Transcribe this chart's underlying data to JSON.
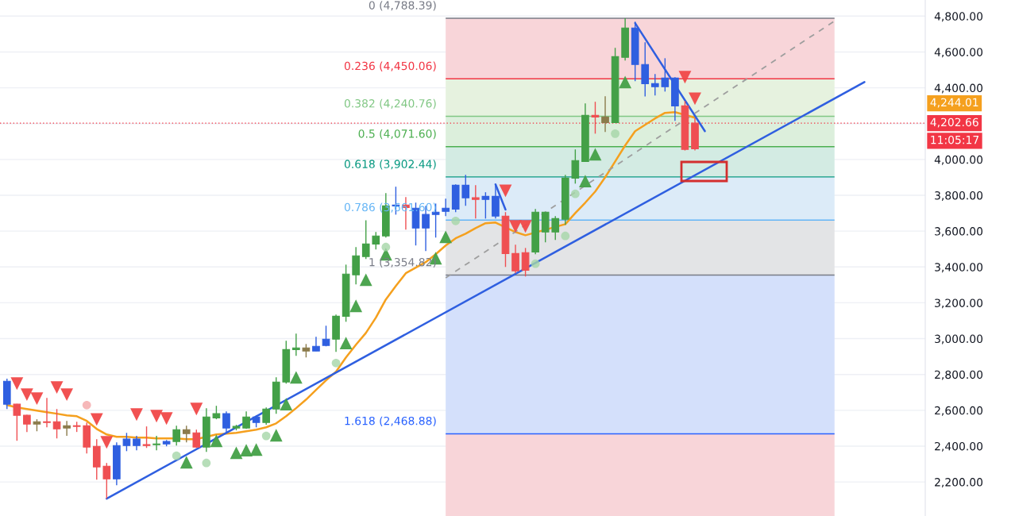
{
  "chart_data": {
    "type": "candlestick",
    "categories": [
      null,
      null,
      null,
      null,
      null,
      null,
      null,
      null,
      null,
      null,
      null,
      null,
      null,
      null,
      null,
      null,
      null,
      null,
      null,
      null,
      null,
      null,
      null,
      null,
      null,
      null,
      null,
      null,
      null,
      null,
      null,
      null,
      null,
      null,
      null,
      null,
      null,
      null,
      null,
      null,
      null,
      null,
      null,
      null,
      null,
      null,
      null,
      null,
      null,
      null,
      null,
      null,
      null,
      null,
      null,
      null,
      null,
      null,
      null,
      null,
      null,
      null,
      null,
      null,
      null,
      null,
      null,
      null,
      null,
      null,
      null,
      null,
      null,
      null,
      null,
      null,
      null,
      null,
      null,
      null,
      null,
      null,
      null,
      null,
      null,
      null,
      null,
      null,
      null,
      null,
      null,
      null,
      null
    ],
    "ohlc": [
      [
        2762,
        2776,
        2607,
        2634
      ],
      [
        2634,
        2636,
        2430,
        2572
      ],
      [
        2572,
        2575,
        2479,
        2523
      ],
      [
        2536,
        2550,
        2483,
        2523
      ],
      [
        2536,
        2669,
        2505,
        2532
      ],
      [
        2536,
        2607,
        2443,
        2496
      ],
      [
        2514,
        2541,
        2457,
        2501
      ],
      [
        2514,
        2536,
        2479,
        2510
      ],
      [
        2514,
        2532,
        2359,
        2395
      ],
      [
        2399,
        2439,
        2213,
        2284
      ],
      [
        2288,
        2306,
        2107,
        2217
      ],
      [
        2217,
        2421,
        2182,
        2403
      ],
      [
        2403,
        2474,
        2372,
        2439
      ],
      [
        2439,
        2457,
        2377,
        2403
      ],
      [
        2408,
        2510,
        2390,
        2403
      ],
      [
        2408,
        2457,
        2377,
        2412
      ],
      [
        2426,
        2434,
        2399,
        2412
      ],
      [
        2426,
        2514,
        2403,
        2492
      ],
      [
        2492,
        2514,
        2421,
        2470
      ],
      [
        2474,
        2492,
        2390,
        2395
      ],
      [
        2395,
        2612,
        2368,
        2563
      ],
      [
        2558,
        2625,
        2550,
        2581
      ],
      [
        2581,
        2594,
        2470,
        2501
      ],
      [
        2501,
        2519,
        2488,
        2510
      ],
      [
        2501,
        2594,
        2496,
        2563
      ],
      [
        2563,
        2572,
        2505,
        2532
      ],
      [
        2532,
        2616,
        2519,
        2607
      ],
      [
        2607,
        2784,
        2581,
        2758
      ],
      [
        2758,
        2988,
        2749,
        2939
      ],
      [
        2939,
        3028,
        2904,
        2948
      ],
      [
        2948,
        2970,
        2895,
        2931
      ],
      [
        2931,
        3010,
        2931,
        2957
      ],
      [
        2962,
        3072,
        2957,
        2997
      ],
      [
        2997,
        3134,
        2926,
        3125
      ],
      [
        3125,
        3413,
        3094,
        3360
      ],
      [
        3356,
        3511,
        3303,
        3462
      ],
      [
        3458,
        3661,
        3444,
        3528
      ],
      [
        3528,
        3595,
        3498,
        3573
      ],
      [
        3573,
        3812,
        3564,
        3741
      ],
      [
        3741,
        3848,
        3692,
        3746
      ],
      [
        3746,
        3790,
        3608,
        3732
      ],
      [
        3728,
        3759,
        3520,
        3617
      ],
      [
        3617,
        3741,
        3489,
        3693
      ],
      [
        3693,
        3754,
        3564,
        3706
      ],
      [
        3710,
        3781,
        3684,
        3728
      ],
      [
        3723,
        3861,
        3706,
        3856
      ],
      [
        3786,
        3914,
        3741,
        3856
      ],
      [
        3786,
        3856,
        3670,
        3777
      ],
      [
        3777,
        3817,
        3670,
        3794
      ],
      [
        3794,
        3856,
        3670,
        3684
      ],
      [
        3684,
        3706,
        3400,
        3475
      ],
      [
        3475,
        3524,
        3365,
        3378
      ],
      [
        3480,
        3506,
        3347,
        3382
      ],
      [
        3484,
        3724,
        3471,
        3706
      ],
      [
        3595,
        3706,
        3537,
        3706
      ],
      [
        3595,
        3684,
        3551,
        3670
      ],
      [
        3666,
        3914,
        3635,
        3896
      ],
      [
        3896,
        4056,
        3865,
        3994
      ],
      [
        3989,
        4313,
        3989,
        4246
      ],
      [
        4246,
        4322,
        4144,
        4237
      ],
      [
        4237,
        4353,
        4153,
        4206
      ],
      [
        4206,
        4623,
        4206,
        4574
      ],
      [
        4570,
        4788,
        4552,
        4734
      ],
      [
        4734,
        4769,
        4437,
        4530
      ],
      [
        4530,
        4654,
        4352,
        4423
      ],
      [
        4423,
        4477,
        4357,
        4406
      ],
      [
        4406,
        4565,
        4379,
        4454
      ],
      [
        4454,
        4459,
        4215,
        4299
      ],
      [
        4299,
        4326,
        4050,
        4056
      ],
      [
        4202.66,
        4230,
        4050,
        4060
      ],
      null,
      null,
      null,
      null,
      null,
      null,
      null,
      null,
      null,
      null,
      null,
      null,
      null,
      null,
      null,
      null,
      null,
      null,
      null,
      null,
      null,
      null,
      null
    ],
    "colors": [
      "#2f5fe0",
      "#ef4f52",
      "#ef4f52",
      "#8b7b4b",
      "#ef4f52",
      "#ef4f52",
      "#8b7b4b",
      "#ef4f52",
      "#ef4f52",
      "#ef4f52",
      "#ef4f52",
      "#2f5fe0",
      "#2f5fe0",
      "#2f5fe0",
      "#ef4f52",
      "#43a047",
      "#2f5fe0",
      "#43a047",
      "#8b7b4b",
      "#ef4f52",
      "#43a047",
      "#43a047",
      "#2f5fe0",
      "#43a047",
      "#43a047",
      "#2f5fe0",
      "#43a047",
      "#43a047",
      "#43a047",
      "#43a047",
      "#8b7b4b",
      "#2f5fe0",
      "#2f5fe0",
      "#43a047",
      "#43a047",
      "#43a047",
      "#43a047",
      "#43a047",
      "#43a047",
      "#2f5fe0",
      "#ef4f52",
      "#2f5fe0",
      "#2f5fe0",
      "#2f5fe0",
      "#2f5fe0",
      "#2f5fe0",
      "#2f5fe0",
      "#ef4f52",
      "#2f5fe0",
      "#2f5fe0",
      "#ef4f52",
      "#ef4f52",
      "#ef4f52",
      "#43a047",
      "#43a047",
      "#43a047",
      "#43a047",
      "#43a047",
      "#43a047",
      "#ef4f52",
      "#8b7b4b",
      "#43a047",
      "#43a047",
      "#2f5fe0",
      "#2f5fe0",
      "#2f5fe0",
      "#2f5fe0",
      "#2f5fe0",
      "#ef4f52",
      "#ef4f52",
      null,
      null,
      null,
      null,
      null,
      null,
      null,
      null,
      null,
      null,
      null,
      null,
      null,
      null,
      null,
      null,
      null,
      null,
      null,
      null,
      null,
      null,
      null
    ],
    "series": [
      {
        "type": "line",
        "color": "#f5a01e",
        "values": [
          2629,
          2616,
          2607,
          2598,
          2589,
          2581,
          2572,
          2567,
          2541,
          2496,
          2465,
          2452,
          2452,
          2448,
          2448,
          2443,
          2443,
          2443,
          2439,
          2439,
          null,
          2465,
          2470,
          2474,
          2483,
          2492,
          2505,
          2527,
          2567,
          2612,
          2660,
          2714,
          2767,
          2815,
          2895,
          2966,
          3032,
          3117,
          3219,
          3294,
          3365,
          3396,
          3427,
          3471,
          3520,
          3560,
          3586,
          3617,
          3644,
          3648,
          null,
          3595,
          3577,
          null,
          null,
          null,
          3639,
          3701,
          3759,
          3821,
          3901,
          3989,
          4078,
          4158,
          4193,
          4229,
          4260,
          4264,
          null,
          4233,
          null,
          null,
          null,
          null,
          null,
          null,
          null,
          null,
          null,
          null,
          null,
          null,
          null,
          null,
          null,
          null,
          null,
          null,
          null,
          null,
          null,
          null,
          null
        ]
      },
      {
        "type": "line",
        "color": "#2f5fe0",
        "values": [
          null,
          null,
          null,
          null,
          null,
          null,
          null,
          null,
          null,
          null,
          2107,
          null,
          null,
          null,
          null,
          null,
          null,
          null,
          null,
          null,
          null,
          null,
          null,
          null,
          null,
          null,
          null,
          null,
          null,
          null,
          null,
          null,
          null,
          null,
          null,
          null,
          null,
          null,
          null,
          null,
          null,
          null,
          null,
          null,
          null,
          null,
          null,
          null,
          null,
          null,
          null,
          null,
          null,
          null,
          null,
          null,
          null,
          null,
          null,
          null,
          null,
          null,
          null,
          null,
          null,
          null,
          null,
          null,
          null,
          null,
          null,
          null,
          null,
          null,
          null,
          null,
          null,
          null,
          null,
          null,
          null,
          null,
          null,
          null,
          null,
          null,
          4432,
          null,
          null,
          null,
          null,
          null,
          null
        ]
      },
      {
        "type": "line",
        "color": "#2f5fe0",
        "values": [
          null,
          null,
          null,
          null,
          null,
          null,
          null,
          null,
          null,
          null,
          null,
          null,
          null,
          null,
          null,
          null,
          null,
          null,
          null,
          null,
          null,
          null,
          null,
          null,
          null,
          null,
          null,
          null,
          null,
          null,
          null,
          null,
          null,
          null,
          null,
          null,
          null,
          null,
          null,
          null,
          null,
          null,
          null,
          null,
          null,
          null,
          null,
          null,
          null,
          null,
          null,
          null,
          null,
          null,
          null,
          null,
          null,
          null,
          null,
          null,
          null,
          null,
          null,
          4761,
          null,
          null,
          null,
          null,
          null,
          null,
          4158,
          null,
          null,
          null,
          null,
          null,
          null,
          null,
          null,
          null,
          null,
          null,
          null,
          null,
          null,
          null,
          null,
          null,
          null,
          null,
          null,
          null,
          null
        ]
      },
      {
        "type": "line",
        "color": "#2f5fe0",
        "values": [
          null,
          null,
          null,
          null,
          null,
          null,
          null,
          null,
          null,
          null,
          null,
          null,
          null,
          null,
          null,
          null,
          null,
          null,
          null,
          null,
          null,
          null,
          null,
          null,
          null,
          null,
          null,
          null,
          null,
          null,
          null,
          null,
          null,
          null,
          null,
          null,
          null,
          null,
          null,
          null,
          null,
          null,
          null,
          null,
          null,
          null,
          null,
          null,
          null,
          3861,
          3720,
          null,
          null,
          null,
          null,
          null,
          null,
          null,
          null,
          null,
          null,
          null,
          null,
          null,
          null,
          null,
          null,
          null,
          null,
          null,
          null,
          null,
          null,
          null,
          null,
          null,
          null,
          null,
          null,
          null,
          null,
          null,
          null,
          null,
          null,
          null,
          null,
          null,
          null,
          null,
          null,
          null,
          null
        ]
      },
      {
        "type": "line",
        "color": "#9e9e9e",
        "line_style": "dashed",
        "values": [
          null,
          null,
          null,
          null,
          null,
          null,
          null,
          null,
          null,
          null,
          null,
          null,
          null,
          null,
          null,
          null,
          null,
          null,
          null,
          null,
          null,
          null,
          null,
          null,
          null,
          null,
          null,
          null,
          null,
          null,
          null,
          null,
          null,
          null,
          null,
          null,
          null,
          null,
          null,
          null,
          null,
          null,
          null,
          null,
          3339,
          null,
          null,
          null,
          null,
          null,
          null,
          null,
          null,
          null,
          null,
          null,
          null,
          null,
          null,
          null,
          null,
          null,
          null,
          null,
          null,
          null,
          null,
          null,
          null,
          null,
          null,
          null,
          null,
          null,
          null,
          null,
          null,
          null,
          null,
          null,
          null,
          null,
          null,
          4773,
          null,
          null,
          null,
          null,
          null,
          null,
          null,
          null,
          null
        ]
      },
      {
        "type": "scatter",
        "marker": "triangle-down",
        "color": "#f04848",
        "values": [
          null,
          2749,
          2687,
          2665,
          null,
          2727,
          2687,
          null,
          null,
          2549,
          2421,
          null,
          null,
          2576,
          null,
          2567,
          2554,
          null,
          null,
          2607,
          null,
          null,
          null,
          null,
          null,
          null,
          null,
          null,
          null,
          null,
          null,
          null,
          null,
          null,
          null,
          null,
          null,
          null,
          null,
          null,
          null,
          null,
          null,
          null,
          null,
          null,
          null,
          null,
          null,
          null,
          3825,
          3626,
          3626,
          null,
          null,
          null,
          null,
          null,
          null,
          null,
          null,
          null,
          null,
          null,
          null,
          null,
          null,
          null,
          4459,
          4339,
          null,
          null,
          null,
          null,
          null,
          null,
          null,
          null,
          null,
          null,
          null,
          null,
          null,
          null,
          null,
          null,
          null,
          null,
          null,
          null,
          null,
          null,
          null
        ]
      },
      {
        "type": "scatter",
        "marker": "triangle",
        "color": "#43a047",
        "values": [
          null,
          null,
          null,
          null,
          null,
          null,
          null,
          null,
          null,
          null,
          null,
          null,
          null,
          null,
          null,
          null,
          null,
          null,
          2310,
          null,
          null,
          2430,
          null,
          2363,
          2377,
          2381,
          null,
          2461,
          2634,
          2784,
          null,
          null,
          null,
          null,
          2975,
          3183,
          3329,
          null,
          3471,
          null,
          null,
          null,
          null,
          3449,
          3568,
          null,
          null,
          null,
          null,
          null,
          null,
          null,
          null,
          null,
          null,
          null,
          null,
          null,
          3879,
          4029,
          null,
          null,
          4432,
          null,
          null,
          null,
          null,
          null,
          null,
          null,
          null,
          null,
          null,
          null,
          null,
          null,
          null,
          null,
          null,
          null,
          null,
          null,
          null,
          null,
          null,
          null,
          null,
          null,
          null,
          null,
          null,
          null,
          null
        ]
      },
      {
        "type": "scatter",
        "marker": "circle",
        "color": "#a5d6a7",
        "values": [
          null,
          null,
          null,
          null,
          null,
          null,
          null,
          null,
          null,
          null,
          null,
          null,
          null,
          null,
          null,
          null,
          null,
          2346,
          null,
          null,
          2306,
          null,
          null,
          null,
          null,
          null,
          2457,
          null,
          null,
          null,
          null,
          null,
          null,
          2864,
          null,
          null,
          null,
          null,
          3511,
          null,
          null,
          null,
          null,
          null,
          null,
          3657,
          null,
          null,
          null,
          null,
          null,
          null,
          null,
          3418,
          null,
          null,
          3573,
          3808,
          null,
          null,
          null,
          4144,
          null,
          null,
          null,
          null,
          null,
          null,
          null,
          null,
          null,
          null,
          null,
          null,
          null,
          null,
          null,
          null,
          null,
          null,
          null,
          null,
          null,
          null,
          null,
          null,
          null,
          null,
          null,
          null,
          null,
          null,
          null
        ]
      },
      {
        "type": "scatter",
        "marker": "circle",
        "color": "#f4a6a8",
        "values": [
          null,
          null,
          null,
          null,
          null,
          null,
          null,
          null,
          2629,
          null,
          null,
          null,
          null,
          null,
          null,
          null,
          null,
          null,
          null,
          null,
          null,
          null,
          null,
          null,
          null,
          null,
          null,
          null,
          null,
          null,
          null,
          null,
          null,
          null,
          null,
          null,
          null,
          null,
          null,
          null,
          null,
          null,
          null,
          null,
          null,
          null,
          null,
          null,
          null,
          null,
          null,
          null,
          null,
          null,
          null,
          null,
          null,
          null,
          null,
          null,
          null,
          null,
          null,
          null,
          null,
          null,
          null,
          null,
          null,
          null,
          null,
          null,
          null,
          null,
          null,
          null,
          null,
          null,
          null,
          null,
          null,
          null,
          null,
          null,
          null,
          null,
          null,
          null,
          null,
          null,
          null,
          null,
          null
        ]
      }
    ],
    "bands": [
      {
        "axis": "y",
        "from": 4788.39,
        "to": 4450.06,
        "color": "#f8d5d9"
      },
      {
        "axis": "y",
        "from": 4450.06,
        "to": 4240.76,
        "color": "#e6f2df"
      },
      {
        "axis": "y",
        "from": 4240.76,
        "to": 4071.6,
        "color": "#dcefdc"
      },
      {
        "axis": "y",
        "from": 4071.6,
        "to": 3902.44,
        "color": "#d3ebe3"
      },
      {
        "axis": "y",
        "from": 3902.44,
        "to": 3661.6,
        "color": "#dcebf8"
      },
      {
        "axis": "y",
        "from": 3661.6,
        "to": 3354.82,
        "color": "#e3e4e6"
      },
      {
        "axis": "y",
        "from": 3354.82,
        "to": 2468.88,
        "color": "#d4e0fb"
      },
      {
        "axis": "y",
        "from": 2468.88,
        "to": 2010,
        "color": "#f8d5d9"
      }
    ],
    "ref_lines": [
      {
        "axis": "y",
        "value": 4788.39,
        "label": "0 (4,788.39)",
        "color": "#787b86"
      },
      {
        "axis": "y",
        "value": 4450.06,
        "label": "0.236 (4,450.06)",
        "color": "#f23645"
      },
      {
        "axis": "y",
        "value": 4240.76,
        "label": "0.382 (4,240.76)",
        "color": "#81c784"
      },
      {
        "axis": "y",
        "value": 4071.6,
        "label": "0.5 (4,071.60)",
        "color": "#4caf50"
      },
      {
        "axis": "y",
        "value": 3902.44,
        "label": "0.618 (3,902.44)",
        "color": "#089981"
      },
      {
        "axis": "y",
        "value": 3661.6,
        "label": "0.786 (3,661.60)",
        "color": "#64b5f6"
      },
      {
        "axis": "y",
        "value": 3354.82,
        "label": "1 (3,354.82)",
        "color": "#787b86"
      },
      {
        "axis": "y",
        "value": 2468.88,
        "label": "1.618 (2,468.88)",
        "color": "#2962ff"
      },
      {
        "axis": "y",
        "value": 4202.66,
        "label": "4,202.66",
        "color": "#f23645",
        "line_style": "dotted"
      }
    ],
    "annotations": [
      "4,244.01",
      "11:05:17"
    ],
    "ylim": [
      2010,
      4890
    ],
    "yticks": [
      {
        "value": 2200,
        "label": "2,200.00"
      },
      {
        "value": 2400,
        "label": "2,400.00"
      },
      {
        "value": 2600,
        "label": "2,600.00"
      },
      {
        "value": 2800,
        "label": "2,800.00"
      },
      {
        "value": 3000,
        "label": "3,000.00"
      },
      {
        "value": 3200,
        "label": "3,200.00"
      },
      {
        "value": 3400,
        "label": "3,400.00"
      },
      {
        "value": 3600,
        "label": "3,600.00"
      },
      {
        "value": 3800,
        "label": "3,800.00"
      },
      {
        "value": 4000,
        "label": "4,000.00"
      },
      {
        "value": 4200,
        "label": null
      },
      {
        "value": 4400,
        "label": "4,400.00"
      },
      {
        "value": 4600,
        "label": "4,600.00"
      },
      {
        "value": 4800,
        "label": "4,800.00"
      }
    ],
    "grid": "y",
    "tick_labels": "y",
    "legend": false
  }
}
